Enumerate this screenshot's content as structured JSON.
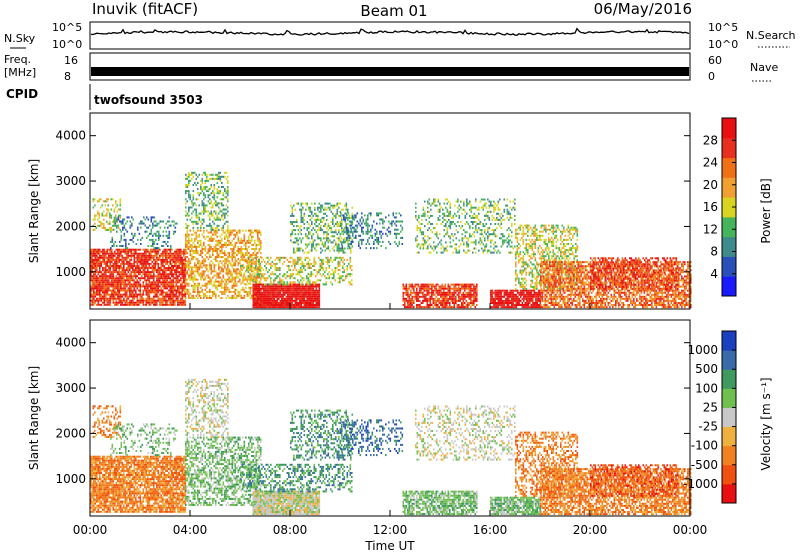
{
  "header": {
    "station": "Inuvik (fitACF)",
    "beam": "Beam 01",
    "date": "06/May/2016"
  },
  "small_panels": {
    "nsky": {
      "label": "N.Sky",
      "ticks": [
        "10^5",
        "10^0"
      ]
    },
    "nsearch": {
      "label": "N.Search"
    },
    "freq": {
      "label_line1": "Freq.",
      "label_line2": "[MHz]",
      "ticks": [
        "16",
        "8"
      ]
    },
    "nave": {
      "label": "Nave",
      "ticks": [
        "60",
        "0"
      ]
    },
    "cpid": {
      "label": "CPID",
      "value": "twofsound 3503"
    }
  },
  "colors": {
    "power": [
      "#1a1aff",
      "#2a4fb8",
      "#3f8a8a",
      "#46b45a",
      "#d8d420",
      "#f0a030",
      "#f07018",
      "#e83020",
      "#e81010"
    ],
    "velocity": [
      "#e81010",
      "#f05010",
      "#f08020",
      "#f0b040",
      "#c8c8c8",
      "#70c050",
      "#3e9a60",
      "#3a6aa8",
      "#1a40c0"
    ]
  },
  "chart_data": {
    "type": "heatmap",
    "x_ticks": [
      "00:00",
      "04:00",
      "08:00",
      "12:00",
      "16:00",
      "20:00",
      "00:00"
    ],
    "x_range_hours": [
      0,
      24
    ],
    "xlabel": "Time UT",
    "power_panel": {
      "ylabel": "Slant Range [km]",
      "y_ticks": [
        1000,
        2000,
        3000,
        4000
      ],
      "ylim": [
        180,
        4500
      ],
      "colorbar_label": "Power [dB]",
      "colorbar_ticks": [
        "4",
        "8",
        "12",
        "16",
        "20",
        "24",
        "28"
      ],
      "colorbar_range": [
        0,
        32
      ]
    },
    "velocity_panel": {
      "ylabel": "Slant Range [km]",
      "y_ticks": [
        1000,
        2000,
        3000,
        4000
      ],
      "ylim": [
        180,
        4500
      ],
      "colorbar_label": "Velocity [m s⁻¹]",
      "colorbar_ticks": [
        "-1000",
        "-500",
        "-100",
        "-25",
        "25",
        "100",
        "500",
        "1000"
      ]
    },
    "scatter_regions": [
      {
        "t0": 0.0,
        "t1": 3.8,
        "r0": 250,
        "r1": 1500,
        "density": 0.85,
        "pcol": 7,
        "vcol": 2
      },
      {
        "t0": 0.1,
        "t1": 1.2,
        "r0": 1900,
        "r1": 2600,
        "density": 0.35,
        "pcol": 4,
        "vcol": 2
      },
      {
        "t0": 0.8,
        "t1": 3.5,
        "r0": 1500,
        "r1": 2200,
        "density": 0.25,
        "pcol": 2,
        "vcol": 5
      },
      {
        "t0": 3.8,
        "t1": 6.8,
        "r0": 400,
        "r1": 1900,
        "density": 0.55,
        "pcol": 5,
        "vcol": 5
      },
      {
        "t0": 3.8,
        "t1": 5.5,
        "r0": 1900,
        "r1": 3200,
        "density": 0.35,
        "pcol": 3,
        "vcol": 4
      },
      {
        "t0": 6.5,
        "t1": 9.2,
        "r0": 200,
        "r1": 700,
        "density": 0.95,
        "pcol": 8,
        "vcol": 4
      },
      {
        "t0": 6.0,
        "t1": 10.5,
        "r0": 700,
        "r1": 1300,
        "density": 0.4,
        "pcol": 4,
        "vcol": 6
      },
      {
        "t0": 8.0,
        "t1": 10.5,
        "r0": 1400,
        "r1": 2500,
        "density": 0.35,
        "pcol": 3,
        "vcol": 6
      },
      {
        "t0": 10.0,
        "t1": 12.5,
        "r0": 1500,
        "r1": 2300,
        "density": 0.3,
        "pcol": 2,
        "vcol": 7
      },
      {
        "t0": 12.5,
        "t1": 15.5,
        "r0": 200,
        "r1": 700,
        "density": 0.8,
        "pcol": 7,
        "vcol": 5
      },
      {
        "t0": 13.0,
        "t1": 17.0,
        "r0": 1400,
        "r1": 2600,
        "density": 0.3,
        "pcol": 3,
        "vcol": 4
      },
      {
        "t0": 16.0,
        "t1": 18.0,
        "r0": 200,
        "r1": 600,
        "density": 0.85,
        "pcol": 8,
        "vcol": 5
      },
      {
        "t0": 17.0,
        "t1": 19.5,
        "r0": 600,
        "r1": 2000,
        "density": 0.45,
        "pcol": 4,
        "vcol": 2
      },
      {
        "t0": 18.0,
        "t1": 24.0,
        "r0": 200,
        "r1": 1200,
        "density": 0.7,
        "pcol": 6,
        "vcol": 2
      },
      {
        "t0": 20.0,
        "t1": 23.5,
        "r0": 600,
        "r1": 1300,
        "density": 0.5,
        "pcol": 7,
        "vcol": 1
      }
    ]
  }
}
